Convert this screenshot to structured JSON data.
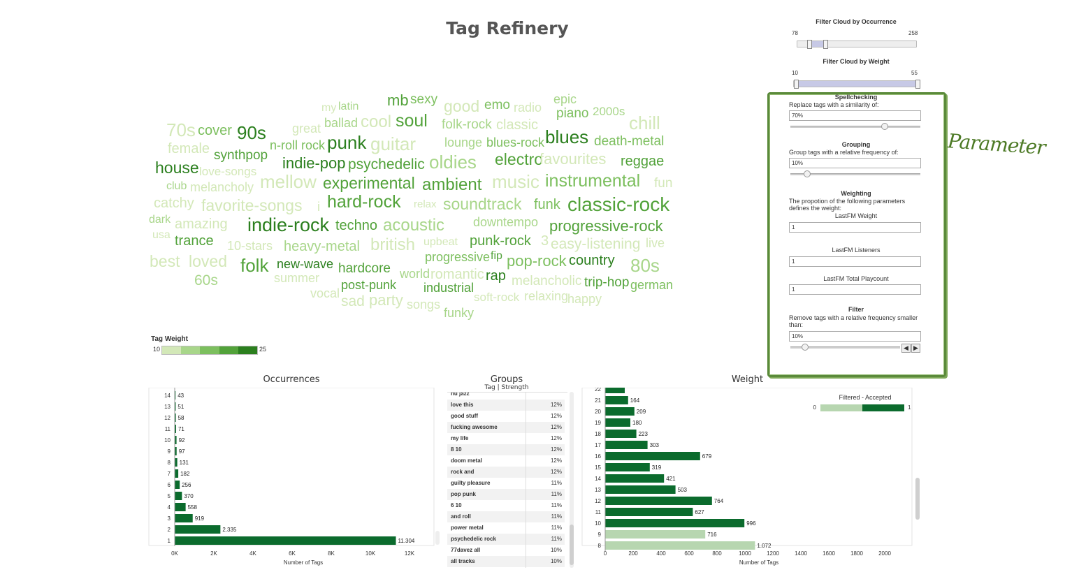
{
  "title": "Tag Refinery",
  "filter_occurrence": {
    "title": "Filter Cloud by Occurrence",
    "min": "78",
    "max": "258",
    "range": [
      0.08,
      0.25
    ]
  },
  "filter_weight": {
    "title": "Filter Cloud by Weight",
    "min": "10",
    "max": "55",
    "range": [
      0.0,
      1.0
    ]
  },
  "parameters": {
    "annotation": "Parameter",
    "spell": {
      "title": "Spellchecking",
      "desc": "Replace tags with a similarity of:",
      "value": "70%",
      "level": 0.7
    },
    "group": {
      "title": "Grouping",
      "desc": "Group tags with a relative frequency of:",
      "value": "10%",
      "level": 0.1
    },
    "weighting": {
      "title": "Weighting",
      "desc": "The propotion of the following parameters defines the weight:",
      "lastfm_weight_label": "LastFM Weight",
      "lastfm_weight": "1",
      "listeners_label": "LastFM Listeners",
      "listeners": "1",
      "playcount_label": "LastFM Total Playcount",
      "playcount": "1"
    },
    "filter": {
      "title": "Filter",
      "desc": "Remove tags with a relative frequency smaller than:",
      "value": "10%",
      "level": 0.1
    }
  },
  "tag_weight_legend": {
    "title": "Tag Weight",
    "min": "10",
    "max": "25",
    "colors": [
      "#d3e8b8",
      "#a8d68a",
      "#7cbf5e",
      "#52a23a",
      "#2b7f1e"
    ]
  },
  "colors": {
    "dark_green": "#0b6b2d",
    "light_green": "#b7d6b0"
  },
  "chart_data": [
    {
      "type": "tag-cloud",
      "title": "",
      "words": [
        {
          "t": "my",
          "w": 12
        },
        {
          "t": "latin",
          "w": 15
        },
        {
          "t": "mb",
          "w": 22
        },
        {
          "t": "sexy",
          "w": 18
        },
        {
          "t": "good",
          "w": 12
        },
        {
          "t": "emo",
          "w": 18
        },
        {
          "t": "radio",
          "w": 12
        },
        {
          "t": "epic",
          "w": 14
        },
        {
          "t": "70s",
          "w": 13
        },
        {
          "t": "cover",
          "w": 17
        },
        {
          "t": "90s",
          "w": 23
        },
        {
          "t": "great",
          "w": 11
        },
        {
          "t": "ballad",
          "w": 15
        },
        {
          "t": "cool",
          "w": 11
        },
        {
          "t": "soul",
          "w": 22
        },
        {
          "t": "folk-rock",
          "w": 15
        },
        {
          "t": "classic",
          "w": 11
        },
        {
          "t": "piano",
          "w": 17
        },
        {
          "t": "2000s",
          "w": 16
        },
        {
          "t": "chill",
          "w": 10
        },
        {
          "t": "female",
          "w": 13
        },
        {
          "t": "synthpop",
          "w": 22
        },
        {
          "t": "n-roll rock",
          "w": 18
        },
        {
          "t": "punk",
          "w": 25
        },
        {
          "t": "guitar",
          "w": 13
        },
        {
          "t": "lounge",
          "w": 16
        },
        {
          "t": "blues-rock",
          "w": 18
        },
        {
          "t": "blues",
          "w": 23
        },
        {
          "t": "death-metal",
          "w": 17
        },
        {
          "t": "house",
          "w": 25
        },
        {
          "t": "love-songs",
          "w": 12
        },
        {
          "t": "indie-pop",
          "w": 23
        },
        {
          "t": "psychedelic",
          "w": 20
        },
        {
          "t": "oldies",
          "w": 14
        },
        {
          "t": "electro",
          "w": 22
        },
        {
          "t": "favourites",
          "w": 10
        },
        {
          "t": "reggae",
          "w": 22
        },
        {
          "t": "club",
          "w": 14
        },
        {
          "t": "melancholy",
          "w": 13
        },
        {
          "t": "mellow",
          "w": 12
        },
        {
          "t": "experimental",
          "w": 20
        },
        {
          "t": "ambient",
          "w": 20
        },
        {
          "t": "music",
          "w": 10
        },
        {
          "t": "instrumental",
          "w": 18
        },
        {
          "t": "fun",
          "w": 10
        },
        {
          "t": "catchy",
          "w": 10
        },
        {
          "t": "favorite-songs",
          "w": 10
        },
        {
          "t": "i",
          "w": 10
        },
        {
          "t": "hard-rock",
          "w": 20
        },
        {
          "t": "relax",
          "w": 10
        },
        {
          "t": "soundtrack",
          "w": 16
        },
        {
          "t": "funk",
          "w": 19
        },
        {
          "t": "classic-rock",
          "w": 22
        },
        {
          "t": "dark",
          "w": 16
        },
        {
          "t": "amazing",
          "w": 11
        },
        {
          "t": "indie-rock",
          "w": 24
        },
        {
          "t": "techno",
          "w": 20
        },
        {
          "t": "acoustic",
          "w": 14
        },
        {
          "t": "downtempo",
          "w": 16
        },
        {
          "t": "progressive-rock",
          "w": 22
        },
        {
          "t": "usa",
          "w": 10
        },
        {
          "t": "trance",
          "w": 20
        },
        {
          "t": "10-stars",
          "w": 10
        },
        {
          "t": "heavy-metal",
          "w": 16
        },
        {
          "t": "british",
          "w": 13
        },
        {
          "t": "upbeat",
          "w": 10
        },
        {
          "t": "punk-rock",
          "w": 22
        },
        {
          "t": "3",
          "w": 10
        },
        {
          "t": "easy-listening",
          "w": 13
        },
        {
          "t": "live",
          "w": 12
        },
        {
          "t": "best",
          "w": 10
        },
        {
          "t": "loved",
          "w": 10
        },
        {
          "t": "folk",
          "w": 20
        },
        {
          "t": "new-wave",
          "w": 23
        },
        {
          "t": "hardcore",
          "w": 22
        },
        {
          "t": "progressive",
          "w": 17
        },
        {
          "t": "fip",
          "w": 22
        },
        {
          "t": "pop-rock",
          "w": 17
        },
        {
          "t": "country",
          "w": 23
        },
        {
          "t": "80s",
          "w": 15
        },
        {
          "t": "60s",
          "w": 16
        },
        {
          "t": "summer",
          "w": 12
        },
        {
          "t": "world",
          "w": 15
        },
        {
          "t": "romantic",
          "w": 12
        },
        {
          "t": "rap",
          "w": 23
        },
        {
          "t": "melancholic",
          "w": 10
        },
        {
          "t": "trip-hop",
          "w": 22
        },
        {
          "t": "german",
          "w": 18
        },
        {
          "t": "vocal",
          "w": 13
        },
        {
          "t": "post-punk",
          "w": 22
        },
        {
          "t": "industrial",
          "w": 20
        },
        {
          "t": "sad",
          "w": 10
        },
        {
          "t": "party",
          "w": 10
        },
        {
          "t": "songs",
          "w": 11
        },
        {
          "t": "soft-rock",
          "w": 10
        },
        {
          "t": "relaxing",
          "w": 11
        },
        {
          "t": "happy",
          "w": 10
        },
        {
          "t": "funky",
          "w": 14
        }
      ]
    },
    {
      "type": "bar",
      "title": "Occurrences",
      "xlabel": "Number of Tags",
      "xlim": [
        0,
        12500
      ],
      "xticks": [
        "0K",
        "2K",
        "4K",
        "6K",
        "8K",
        "10K",
        "12K"
      ],
      "xtick_values": [
        0,
        2000,
        4000,
        6000,
        8000,
        10000,
        12000
      ],
      "categories": [
        "14",
        "13",
        "12",
        "11",
        "10",
        "9",
        "8",
        "7",
        "6",
        "5",
        "4",
        "3",
        "2",
        "1"
      ],
      "values": [
        43,
        51,
        58,
        71,
        92,
        97,
        131,
        182,
        256,
        370,
        558,
        919,
        2335,
        11304
      ],
      "labels": [
        "43",
        "51",
        "58",
        "71",
        "92",
        "97",
        "131",
        "182",
        "256",
        "370",
        "558",
        "919",
        "2.335",
        "11.304"
      ]
    },
    {
      "type": "table",
      "title": "Groups",
      "subtitle": "Tag | Strength",
      "rows": [
        {
          "tag": "nu jazz",
          "s": ""
        },
        {
          "tag": "love this",
          "s": "12%"
        },
        {
          "tag": "good stuff",
          "s": "12%"
        },
        {
          "tag": "fucking awesome",
          "s": "12%"
        },
        {
          "tag": "my life",
          "s": "12%"
        },
        {
          "tag": "8 10",
          "s": "12%"
        },
        {
          "tag": "doom metal",
          "s": "12%"
        },
        {
          "tag": "rock and",
          "s": "12%"
        },
        {
          "tag": "guilty pleasure",
          "s": "11%"
        },
        {
          "tag": "pop punk",
          "s": "11%"
        },
        {
          "tag": "6 10",
          "s": "11%"
        },
        {
          "tag": "and roll",
          "s": "11%"
        },
        {
          "tag": "power metal",
          "s": "11%"
        },
        {
          "tag": "psychedelic rock",
          "s": "11%"
        },
        {
          "tag": "77davez all",
          "s": "10%"
        },
        {
          "tag": "all tracks",
          "s": "10%"
        }
      ]
    },
    {
      "type": "bar",
      "title": "Weight",
      "xlabel": "Number of Tags",
      "xlim": [
        0,
        2150
      ],
      "xticks": [
        "0",
        "200",
        "400",
        "600",
        "800",
        "1000",
        "1200",
        "1400",
        "1600",
        "1800",
        "2000"
      ],
      "xtick_values": [
        0,
        200,
        400,
        600,
        800,
        1000,
        1200,
        1400,
        1600,
        1800,
        2000
      ],
      "categories": [
        "22",
        "21",
        "20",
        "19",
        "18",
        "17",
        "16",
        "15",
        "14",
        "13",
        "12",
        "11",
        "10",
        "9",
        "8"
      ],
      "values": [
        140,
        164,
        209,
        180,
        223,
        303,
        679,
        319,
        421,
        503,
        764,
        627,
        996,
        716,
        1072
      ],
      "labels": [
        "",
        "164",
        "209",
        "180",
        "223",
        "303",
        "679",
        "319",
        "421",
        "503",
        "764",
        "627",
        "996",
        "716",
        "1.072"
      ],
      "status": [
        "a",
        "a",
        "a",
        "a",
        "a",
        "a",
        "a",
        "a",
        "a",
        "a",
        "a",
        "a",
        "a",
        "f",
        "f"
      ],
      "legend": {
        "title": "Filtered - Accepted",
        "min": "0",
        "max": "1"
      }
    }
  ]
}
